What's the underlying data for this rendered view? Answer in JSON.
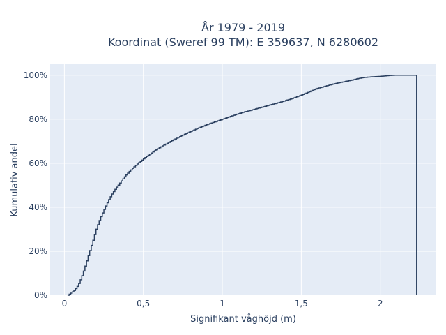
{
  "chart_data": {
    "type": "line",
    "line_shape": "step",
    "title": [
      "År 1979 - 2019",
      "Koordinat (Sweref 99 TM): E 359637, N 6280602"
    ],
    "xlabel": "Signifikant våghöjd (m)",
    "ylabel": "Kumulativ andel",
    "xlim": [
      -0.09,
      2.35
    ],
    "ylim": [
      0,
      1.05
    ],
    "x_ticks": [
      0,
      0.5,
      1,
      1.5,
      2
    ],
    "x_tick_labels": [
      "0",
      "0,5",
      "1",
      "1,5",
      "2"
    ],
    "y_ticks": [
      0,
      0.2,
      0.4,
      0.6,
      0.8,
      1.0
    ],
    "y_tick_labels": [
      "0%",
      "20%",
      "40%",
      "60%",
      "80%",
      "100%"
    ],
    "grid": true,
    "series": [
      {
        "color": "#2a3f5f",
        "x": [
          0.02,
          0.05,
          0.08,
          0.1,
          0.12,
          0.15,
          0.18,
          0.2,
          0.25,
          0.3,
          0.35,
          0.4,
          0.5,
          0.6,
          0.7,
          0.8,
          0.9,
          1.0,
          1.1,
          1.2,
          1.3,
          1.4,
          1.5,
          1.55,
          1.6,
          1.65,
          1.7,
          1.8,
          1.9,
          2.0,
          2.1,
          2.23
        ],
        "y": [
          0.0,
          0.015,
          0.04,
          0.07,
          0.11,
          0.18,
          0.25,
          0.3,
          0.39,
          0.46,
          0.51,
          0.555,
          0.62,
          0.67,
          0.71,
          0.745,
          0.775,
          0.8,
          0.825,
          0.845,
          0.865,
          0.885,
          0.91,
          0.925,
          0.94,
          0.95,
          0.96,
          0.975,
          0.99,
          0.995,
          1.0,
          1.0
        ]
      }
    ]
  }
}
